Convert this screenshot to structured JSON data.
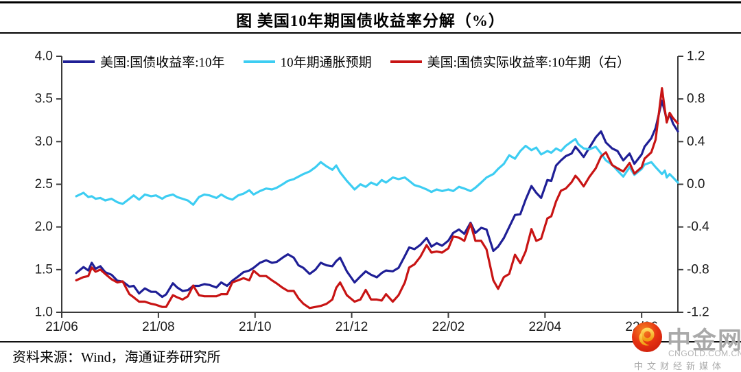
{
  "title": "图  美国10年期国债收益率分解（%）",
  "source": "资料来源：Wind，海通证券研究所",
  "watermark": {
    "name": "中金网",
    "domain": "CNGOLD.COM.CN",
    "tagline": "中文财经新媒体"
  },
  "colors": {
    "nominal": "#1F1F96",
    "breakeven": "#3DCDF2",
    "real": "#C81414",
    "axis": "#3a3a3a",
    "text": "#1a1a1a"
  },
  "chart_data": {
    "type": "line",
    "title": "图 美国10年期国债收益率分解（%）",
    "legend_position": "top",
    "grid": false,
    "x_unit": "months since 2021-06",
    "x_range": [
      0,
      12.75
    ],
    "x_tick_positions": [
      0,
      2,
      4,
      6,
      8,
      10,
      12
    ],
    "x_tick_labels": [
      "21/06",
      "21/08",
      "21/10",
      "21/12",
      "22/02",
      "22/04",
      "22/06"
    ],
    "left_axis": {
      "range": [
        1.0,
        4.0
      ],
      "ticks": [
        4.0,
        3.5,
        3.0,
        2.5,
        2.0,
        1.5,
        1.0
      ],
      "tick_labels": [
        "4.0",
        "3.5",
        "3.0",
        "2.5",
        "2.0",
        "1.5",
        "1.0"
      ]
    },
    "right_axis": {
      "range": [
        -1.2,
        1.2
      ],
      "ticks": [
        1.2,
        0.8,
        0.4,
        0.0,
        -0.4,
        -0.8,
        -1.2
      ],
      "tick_labels": [
        "1.2",
        "0.8",
        "0.4",
        "0.0",
        "-0.4",
        "-0.8",
        "-1.2"
      ]
    },
    "x": [
      0.3,
      0.45,
      0.55,
      0.62,
      0.7,
      0.8,
      0.9,
      1.03,
      1.15,
      1.26,
      1.4,
      1.49,
      1.6,
      1.72,
      1.85,
      1.95,
      2.08,
      2.16,
      2.3,
      2.39,
      2.5,
      2.61,
      2.72,
      2.84,
      2.95,
      3.06,
      3.2,
      3.3,
      3.42,
      3.53,
      3.65,
      3.76,
      3.88,
      3.97,
      4.1,
      4.23,
      4.35,
      4.45,
      4.57,
      4.68,
      4.8,
      4.9,
      5.0,
      5.13,
      5.25,
      5.36,
      5.48,
      5.6,
      5.68,
      5.76,
      5.9,
      6.06,
      6.18,
      6.29,
      6.4,
      6.52,
      6.62,
      6.71,
      6.85,
      6.97,
      7.1,
      7.19,
      7.3,
      7.42,
      7.55,
      7.65,
      7.76,
      7.87,
      8.0,
      8.1,
      8.22,
      8.33,
      8.46,
      8.56,
      8.68,
      8.79,
      8.93,
      9.03,
      9.15,
      9.26,
      9.38,
      9.49,
      9.6,
      9.72,
      9.82,
      9.92,
      10.05,
      10.13,
      10.23,
      10.33,
      10.43,
      10.55,
      10.63,
      10.69,
      10.8,
      10.92,
      11.05,
      11.16,
      11.26,
      11.39,
      11.5,
      11.62,
      11.75,
      11.85,
      12.0,
      12.06,
      12.2,
      12.29,
      12.42,
      12.48,
      12.52,
      12.58,
      12.65,
      12.75
    ],
    "series": [
      {
        "name": "美国:国债收益率:10年",
        "axis": "left",
        "color": "#1F1F96",
        "values": [
          1.46,
          1.53,
          1.49,
          1.58,
          1.51,
          1.54,
          1.47,
          1.44,
          1.37,
          1.36,
          1.3,
          1.31,
          1.22,
          1.28,
          1.24,
          1.24,
          1.18,
          1.21,
          1.34,
          1.29,
          1.25,
          1.26,
          1.31,
          1.31,
          1.33,
          1.32,
          1.29,
          1.35,
          1.31,
          1.37,
          1.42,
          1.47,
          1.49,
          1.52,
          1.58,
          1.61,
          1.58,
          1.59,
          1.64,
          1.68,
          1.64,
          1.55,
          1.52,
          1.45,
          1.5,
          1.58,
          1.55,
          1.54,
          1.6,
          1.64,
          1.48,
          1.35,
          1.42,
          1.48,
          1.44,
          1.41,
          1.46,
          1.49,
          1.48,
          1.52,
          1.66,
          1.76,
          1.74,
          1.79,
          1.87,
          1.77,
          1.81,
          1.78,
          1.84,
          1.93,
          1.97,
          1.92,
          2.05,
          1.93,
          1.99,
          1.97,
          1.72,
          1.77,
          1.87,
          2.0,
          2.14,
          2.15,
          2.32,
          2.48,
          2.4,
          2.34,
          2.55,
          2.54,
          2.72,
          2.78,
          2.83,
          2.86,
          2.94,
          2.9,
          2.82,
          2.93,
          3.05,
          3.12,
          2.99,
          2.92,
          2.89,
          2.78,
          2.86,
          2.74,
          2.85,
          2.94,
          3.04,
          3.16,
          3.48,
          3.35,
          3.25,
          3.32,
          3.21,
          3.12
        ]
      },
      {
        "name": "10年期通胀预期",
        "axis": "left",
        "color": "#3DCDF2",
        "values": [
          2.36,
          2.4,
          2.35,
          2.36,
          2.33,
          2.34,
          2.31,
          2.33,
          2.29,
          2.27,
          2.33,
          2.37,
          2.32,
          2.38,
          2.36,
          2.37,
          2.33,
          2.36,
          2.38,
          2.35,
          2.33,
          2.31,
          2.26,
          2.35,
          2.38,
          2.37,
          2.34,
          2.38,
          2.34,
          2.32,
          2.37,
          2.39,
          2.43,
          2.38,
          2.42,
          2.45,
          2.44,
          2.46,
          2.5,
          2.54,
          2.56,
          2.59,
          2.62,
          2.65,
          2.7,
          2.76,
          2.71,
          2.67,
          2.72,
          2.64,
          2.54,
          2.44,
          2.5,
          2.47,
          2.52,
          2.49,
          2.55,
          2.52,
          2.58,
          2.56,
          2.58,
          2.54,
          2.49,
          2.47,
          2.44,
          2.41,
          2.44,
          2.42,
          2.44,
          2.42,
          2.47,
          2.45,
          2.42,
          2.46,
          2.52,
          2.58,
          2.62,
          2.68,
          2.74,
          2.84,
          2.8,
          2.89,
          2.95,
          2.9,
          2.93,
          2.85,
          2.89,
          2.87,
          2.92,
          2.89,
          2.95,
          3.0,
          3.03,
          2.97,
          2.92,
          2.91,
          2.94,
          2.86,
          2.78,
          2.73,
          2.66,
          2.59,
          2.7,
          2.61,
          2.68,
          2.73,
          2.76,
          2.7,
          2.62,
          2.66,
          2.58,
          2.62,
          2.58,
          2.52
        ]
      },
      {
        "name": "美国:国债实际收益率:10年期（右）",
        "axis": "right",
        "color": "#C81414",
        "values": [
          -0.9,
          -0.87,
          -0.86,
          -0.78,
          -0.82,
          -0.8,
          -0.84,
          -0.89,
          -0.92,
          -0.91,
          -1.03,
          -1.06,
          -1.1,
          -1.1,
          -1.12,
          -1.13,
          -1.15,
          -1.15,
          -1.04,
          -1.06,
          -1.08,
          -1.05,
          -0.95,
          -1.04,
          -1.05,
          -1.05,
          -1.05,
          -1.03,
          -1.03,
          -0.92,
          -0.9,
          -0.88,
          -0.9,
          -0.81,
          -0.86,
          -0.86,
          -0.9,
          -0.93,
          -0.97,
          -1.0,
          -1.0,
          -1.07,
          -1.12,
          -1.16,
          -1.15,
          -1.14,
          -1.12,
          -1.08,
          -0.97,
          -0.92,
          -1.04,
          -1.1,
          -1.08,
          -0.99,
          -1.08,
          -1.08,
          -1.09,
          -1.03,
          -1.1,
          -1.04,
          -0.92,
          -0.78,
          -0.75,
          -0.68,
          -0.57,
          -0.64,
          -0.63,
          -0.64,
          -0.6,
          -0.49,
          -0.5,
          -0.53,
          -0.37,
          -0.53,
          -0.53,
          -0.61,
          -0.9,
          -0.98,
          -0.87,
          -0.84,
          -0.66,
          -0.74,
          -0.63,
          -0.42,
          -0.53,
          -0.51,
          -0.32,
          -0.3,
          -0.16,
          -0.06,
          -0.04,
          0.02,
          0.08,
          0.05,
          -0.02,
          0.07,
          0.15,
          0.26,
          0.3,
          0.18,
          0.15,
          0.12,
          0.2,
          0.1,
          0.16,
          0.24,
          0.3,
          0.42,
          0.9,
          0.7,
          0.58,
          0.67,
          0.62,
          0.57
        ]
      }
    ]
  }
}
